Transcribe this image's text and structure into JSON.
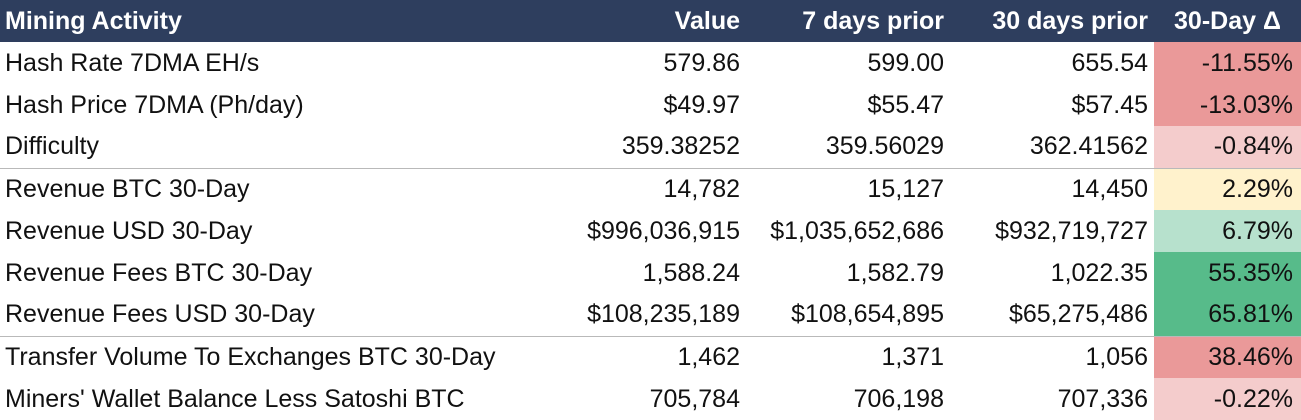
{
  "header": {
    "label": "Mining Activity",
    "value": "Value",
    "prior7": "7 days prior",
    "prior30": "30 days prior",
    "delta": "30-Day Δ"
  },
  "rows": [
    {
      "label": "Hash Rate 7DMA EH/s",
      "value": "579.86",
      "prior7": "599.00",
      "prior30": "655.54",
      "delta": "-11.55%",
      "delta_color": "#ea9999"
    },
    {
      "label": "Hash Price 7DMA (Ph/day)",
      "value": "$49.97",
      "prior7": "$55.47",
      "prior30": "$57.45",
      "delta": "-13.03%",
      "delta_color": "#ea9999"
    },
    {
      "label": "Difficulty",
      "value": "359.38252",
      "prior7": "359.56029",
      "prior30": "362.41562",
      "delta": "-0.84%",
      "delta_color": "#f4cccc"
    },
    {
      "label": "Revenue BTC 30-Day",
      "value": "14,782",
      "prior7": "15,127",
      "prior30": "14,450",
      "delta": "2.29%",
      "delta_color": "#fff2cc"
    },
    {
      "label": "Revenue USD 30-Day",
      "value": "$996,036,915",
      "prior7": "$1,035,652,686",
      "prior30": "$932,719,727",
      "delta": "6.79%",
      "delta_color": "#b7e1cd"
    },
    {
      "label": "Revenue Fees BTC 30-Day",
      "value": "1,588.24",
      "prior7": "1,582.79",
      "prior30": "1,022.35",
      "delta": "55.35%",
      "delta_color": "#57bb8a"
    },
    {
      "label": "Revenue Fees USD 30-Day",
      "value": "$108,235,189",
      "prior7": "$108,654,895",
      "prior30": "$65,275,486",
      "delta": "65.81%",
      "delta_color": "#57bb8a"
    },
    {
      "label": "Transfer Volume To Exchanges BTC 30-Day",
      "value": "1,462",
      "prior7": "1,371",
      "prior30": "1,056",
      "delta": "38.46%",
      "delta_color": "#ea9999"
    },
    {
      "label": "Miners' Wallet Balance Less Satoshi BTC",
      "value": "705,784",
      "prior7": "706,198",
      "prior30": "707,336",
      "delta": "-0.22%",
      "delta_color": "#f4cccc"
    }
  ],
  "colors": {
    "header_bg": "#2e3e5e",
    "header_text": "#ffffff",
    "group_divider": "#b9b9b9"
  }
}
